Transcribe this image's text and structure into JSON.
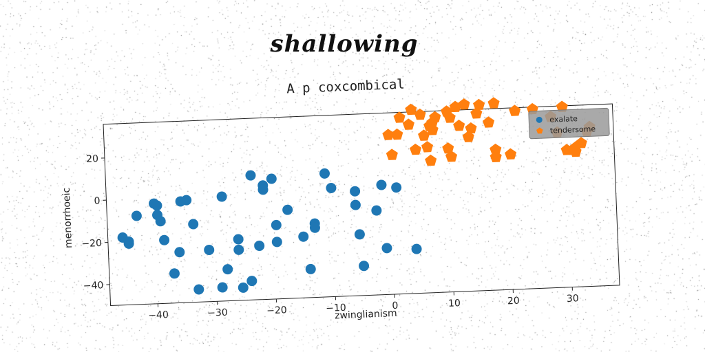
{
  "suptitle": "shallowing",
  "chart_data": {
    "type": "scatter",
    "title": "A p coxcombical",
    "xlabel": "zwinglianism",
    "ylabel": "menorrhoeic",
    "xlim": [
      -48,
      38
    ],
    "ylim": [
      -50,
      36
    ],
    "xticks": [
      -40,
      -30,
      -20,
      -10,
      0,
      10,
      20,
      30
    ],
    "yticks": [
      -40,
      -20,
      0,
      20
    ],
    "grid": false,
    "legend_position": "top-right",
    "series": [
      {
        "name": "exalate",
        "color": "#1f77b4",
        "marker": "circle",
        "points": [
          [
            -45.5,
            -18
          ],
          [
            -44.5,
            -20
          ],
          [
            -44.5,
            -21
          ],
          [
            -43,
            -8
          ],
          [
            -40,
            -2.5
          ],
          [
            -39.5,
            -3.5
          ],
          [
            -39.5,
            -8
          ],
          [
            -39,
            -11
          ],
          [
            -38.5,
            -20
          ],
          [
            -37,
            -36
          ],
          [
            -36,
            -26
          ],
          [
            -35.5,
            -2
          ],
          [
            -34.5,
            -1.5
          ],
          [
            -33.5,
            -13
          ],
          [
            -33,
            -44
          ],
          [
            -31,
            -25.5
          ],
          [
            -29,
            -43.5
          ],
          [
            -28.5,
            -0.5
          ],
          [
            -28,
            -35
          ],
          [
            -26,
            -21
          ],
          [
            -26,
            -26
          ],
          [
            -25.5,
            -44
          ],
          [
            -24,
            -41
          ],
          [
            -23.5,
            9
          ],
          [
            -22.5,
            -24.5
          ],
          [
            -21.5,
            4
          ],
          [
            -21.5,
            2
          ],
          [
            -20,
            7
          ],
          [
            -19.5,
            -15
          ],
          [
            -19.5,
            -23
          ],
          [
            -17.5,
            -8
          ],
          [
            -15,
            -21
          ],
          [
            -14,
            -36.5
          ],
          [
            -13,
            -15
          ],
          [
            -13,
            -17
          ],
          [
            -11,
            8.5
          ],
          [
            -10,
            1.5
          ],
          [
            -6,
            -0.5
          ],
          [
            -6,
            -7
          ],
          [
            -5.5,
            -21
          ],
          [
            -5,
            -36
          ],
          [
            -2.5,
            -10
          ],
          [
            -1.5,
            2
          ],
          [
            -1,
            -28
          ],
          [
            1,
            0.5
          ],
          [
            4,
            -29
          ]
        ]
      },
      {
        "name": "tendersome",
        "color": "#ff7f0e",
        "marker": "pentagon",
        "points": [
          [
            0,
            25.5
          ],
          [
            0.5,
            16
          ],
          [
            1.5,
            25.5
          ],
          [
            2,
            33.5
          ],
          [
            3.5,
            30
          ],
          [
            4,
            37
          ],
          [
            4.5,
            18
          ],
          [
            5.5,
            34.5
          ],
          [
            6,
            24.5
          ],
          [
            6.5,
            19
          ],
          [
            7,
            12.5
          ],
          [
            7,
            29
          ],
          [
            7.5,
            30.5
          ],
          [
            7.5,
            27
          ],
          [
            8,
            33
          ],
          [
            10,
            35.5
          ],
          [
            10,
            18
          ],
          [
            10.5,
            14
          ],
          [
            10.5,
            32.5
          ],
          [
            11.5,
            37.5
          ],
          [
            12,
            28.5
          ],
          [
            13,
            38.5
          ],
          [
            13.5,
            23
          ],
          [
            14,
            27
          ],
          [
            15,
            34
          ],
          [
            15.5,
            38
          ],
          [
            17,
            29.5
          ],
          [
            18,
            38.5
          ],
          [
            18,
            13
          ],
          [
            18,
            16.5
          ],
          [
            20.5,
            14
          ],
          [
            21.5,
            34.5
          ],
          [
            24.5,
            35
          ],
          [
            27.5,
            31
          ],
          [
            28.5,
            23.5
          ],
          [
            29.5,
            35.5
          ],
          [
            30,
            15
          ],
          [
            31,
            15
          ],
          [
            31.5,
            14
          ],
          [
            31.5,
            16
          ],
          [
            32.5,
            18
          ],
          [
            33.5,
            23.5
          ],
          [
            34,
            25.5
          ]
        ]
      }
    ]
  }
}
